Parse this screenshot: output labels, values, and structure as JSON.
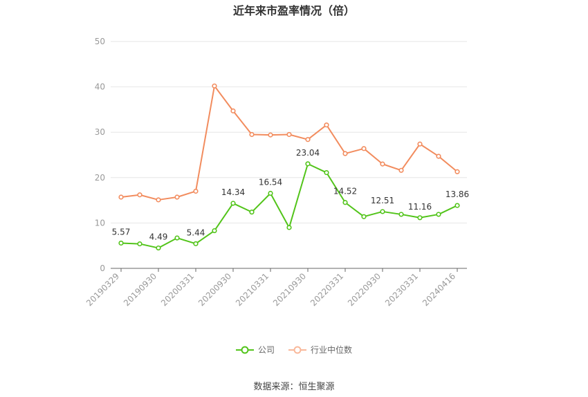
{
  "chart_data": {
    "type": "line",
    "title": "近年来市盈率情况（倍）",
    "ylim": [
      0,
      50
    ],
    "yticks": [
      0,
      10,
      20,
      30,
      40,
      50
    ],
    "x": [
      "20190329",
      "20190630",
      "20190930",
      "20191231",
      "20200331",
      "20200630",
      "20200930",
      "20201231",
      "20210331",
      "20210630",
      "20210930",
      "20211231",
      "20220331",
      "20220630",
      "20220930",
      "20221231",
      "20230331",
      "20230630",
      "20240416"
    ],
    "xtick_labels": [
      "20190329",
      "20190930",
      "20200331",
      "20200930",
      "20210331",
      "20210930",
      "20220331",
      "20220930",
      "20230331",
      "20240416"
    ],
    "xtick_indices": [
      0,
      2,
      4,
      6,
      8,
      10,
      12,
      14,
      16,
      18
    ],
    "series": [
      {
        "name": "公司",
        "color": "#52c41a",
        "values": [
          5.57,
          5.4,
          4.49,
          6.7,
          5.44,
          8.3,
          14.34,
          12.4,
          16.54,
          9.0,
          23.04,
          21.1,
          14.52,
          11.4,
          12.51,
          11.9,
          11.16,
          11.9,
          13.86
        ],
        "labeled_indices": [
          0,
          2,
          4,
          6,
          8,
          10,
          12,
          14,
          16,
          18
        ]
      },
      {
        "name": "行业中位数",
        "color": "#f28c5e",
        "values": [
          15.7,
          16.2,
          15.1,
          15.7,
          17.0,
          40.2,
          34.7,
          29.5,
          29.4,
          29.5,
          28.4,
          31.6,
          25.3,
          26.4,
          23.0,
          21.6,
          27.4,
          24.7,
          21.3
        ]
      }
    ],
    "legend_position": "bottom-center",
    "grid": true
  },
  "source_note": "数据来源：恒生聚源"
}
